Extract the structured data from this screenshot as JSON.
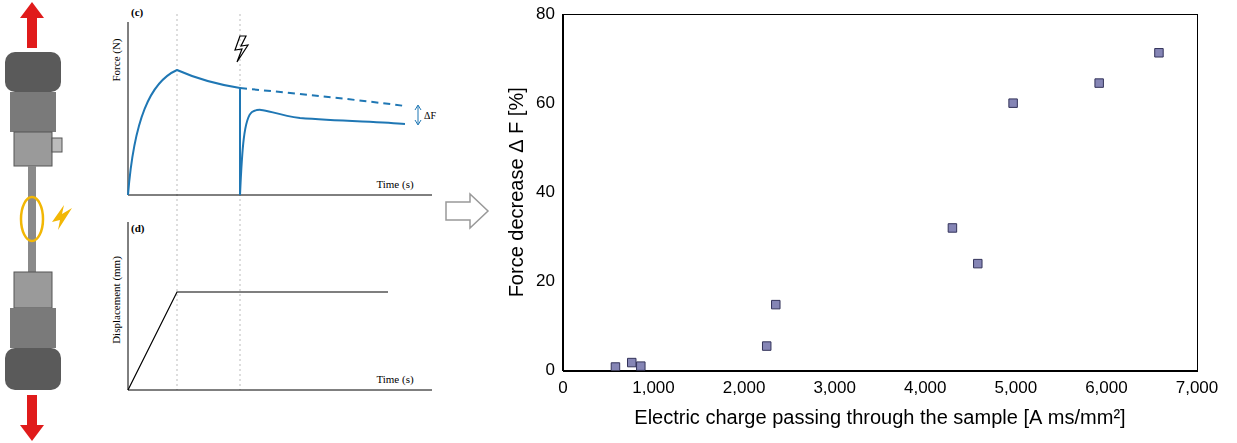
{
  "chart_data": {
    "type": "scatter",
    "x_label": "Electric charge passing through the sample [A ms/mm²]",
    "y_label": "Force decrease Δ F [%]",
    "x": [
      580,
      760,
      860,
      2250,
      2350,
      4300,
      4580,
      4970,
      5920,
      6580
    ],
    "values": [
      0.8,
      1.8,
      1.0,
      5.5,
      14.8,
      32,
      24,
      60,
      64.5,
      71.3
    ],
    "color": "#8585b5",
    "marker": "square",
    "xlim": [
      0,
      7000
    ],
    "xticks": [
      0,
      1000,
      2000,
      3000,
      4000,
      5000,
      6000,
      7000
    ],
    "ylim": [
      0,
      80
    ],
    "yticks": [
      0,
      20,
      40,
      60,
      80
    ],
    "grid": false
  },
  "schematic": {
    "panel_c": {
      "letter": "(c)",
      "y_label": "Force (N)",
      "x_label": "Time (s)",
      "delta_label": "ΔF"
    },
    "panel_d": {
      "letter": "(d)",
      "y_label": "Displacement (mm)",
      "x_label": "Time (s)"
    }
  }
}
